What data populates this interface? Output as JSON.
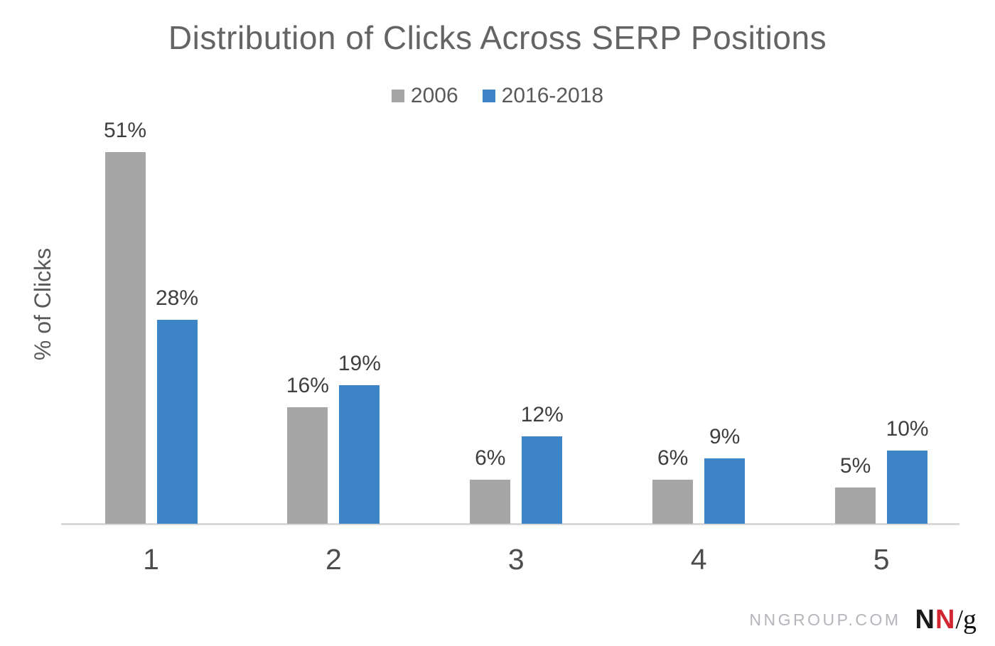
{
  "title": "Distribution of Clicks Across SERP Positions",
  "chart_data": {
    "type": "bar",
    "title": "Distribution of Clicks Across SERP Positions",
    "categories": [
      "1",
      "2",
      "3",
      "4",
      "5"
    ],
    "series": [
      {
        "name": "2006",
        "color": "#a6a6a6",
        "values": [
          51,
          16,
          6,
          6,
          5
        ]
      },
      {
        "name": "2016-2018",
        "color": "#3d85c6",
        "values": [
          28,
          19,
          12,
          9,
          10
        ]
      }
    ],
    "xlabel": "",
    "ylabel": "% of Clicks",
    "ylim": [
      0,
      55
    ],
    "value_label_suffix": "%",
    "grid": false,
    "legend_position": "top",
    "axis_line_color": "#d9d9d9"
  },
  "footer": {
    "site": "NNGROUP.COM",
    "logo": {
      "n1": "N",
      "n2": "N",
      "slash_g": "/g",
      "red": "#d22630",
      "black": "#1a1a1a"
    }
  }
}
